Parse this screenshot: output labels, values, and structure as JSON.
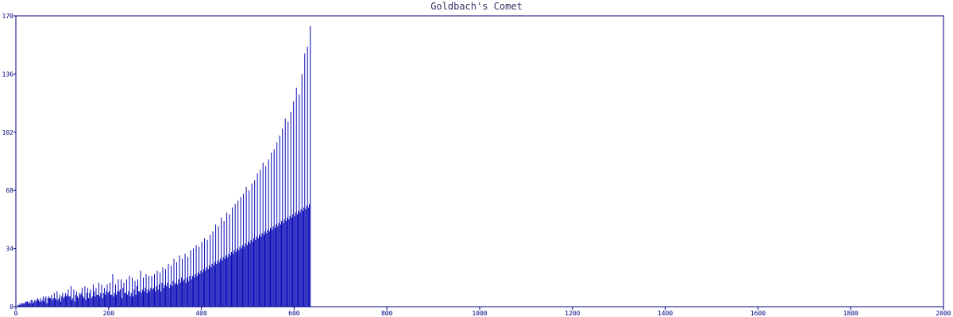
{
  "chart_data": {
    "type": "bar",
    "title": "Goldbach's Comet",
    "xlabel": "",
    "ylabel": "",
    "xlim": [
      0,
      2000
    ],
    "ylim": [
      0,
      170
    ],
    "x_ticks": [
      0,
      200,
      400,
      600,
      800,
      1000,
      1200,
      1400,
      1600,
      1800,
      2000
    ],
    "y_ticks": [
      0,
      34,
      68,
      102,
      136,
      170
    ],
    "grid": false,
    "legend": "none",
    "colors": {
      "bars": "#0000b4",
      "axis": "#000080",
      "title": "#333366",
      "background": "#ffffff"
    },
    "x_step": 2,
    "series": [
      {
        "values": [
          0,
          0,
          1,
          1,
          2,
          1,
          2,
          2,
          2,
          2,
          3,
          3,
          3,
          2,
          3,
          2,
          4,
          4,
          2,
          3,
          4,
          3,
          4,
          5,
          4,
          3,
          5,
          3,
          4,
          6,
          3,
          5,
          6,
          2,
          5,
          6,
          5,
          5,
          7,
          4,
          5,
          8,
          5,
          4,
          9,
          4,
          5,
          7,
          3,
          6,
          8,
          5,
          6,
          8,
          6,
          7,
          10,
          6,
          6,
          12,
          4,
          5,
          10,
          3,
          7,
          9,
          6,
          5,
          8,
          7,
          8,
          11,
          6,
          5,
          12,
          4,
          8,
          11,
          5,
          8,
          10,
          5,
          6,
          13,
          9,
          6,
          11,
          7,
          7,
          14,
          6,
          8,
          13,
          5,
          8,
          11,
          7,
          9,
          13,
          8,
          9,
          14,
          7,
          7,
          19,
          6,
          8,
          13,
          7,
          9,
          16,
          9,
          10,
          16,
          5,
          11,
          14,
          8,
          8,
          16,
          7,
          9,
          18,
          6,
          8,
          17,
          6,
          10,
          15,
          7,
          12,
          16,
          9,
          9,
          21,
          8,
          10,
          17,
          9,
          11,
          19,
          8,
          10,
          18,
          9,
          11,
          18,
          10,
          11,
          19,
          9,
          12,
          21,
          10,
          13,
          20,
          9,
          14,
          23,
          11,
          13,
          22,
          12,
          14,
          25,
          11,
          13,
          24,
          12,
          15,
          28,
          13,
          14,
          26,
          13,
          16,
          30,
          14,
          17,
          28,
          15,
          16,
          31,
          14,
          17,
          29,
          15,
          18,
          33,
          16,
          18,
          34,
          17,
          19,
          36,
          18,
          20,
          35,
          19,
          21,
          38,
          20,
          22,
          40,
          21,
          23,
          39,
          22,
          24,
          42,
          23,
          25,
          44,
          24,
          26,
          48,
          25,
          27,
          47,
          26,
          28,
          52,
          27,
          29,
          50,
          28,
          30,
          55,
          29,
          31,
          54,
          30,
          32,
          58,
          31,
          33,
          60,
          32,
          34,
          62,
          33,
          35,
          64,
          34,
          36,
          66,
          35,
          37,
          70,
          36,
          38,
          68,
          37,
          39,
          72,
          38,
          40,
          74,
          39,
          41,
          78,
          40,
          42,
          80,
          41,
          43,
          84,
          42,
          44,
          82,
          43,
          45,
          86,
          44,
          46,
          90,
          45,
          47,
          92,
          46,
          48,
          96,
          47,
          49,
          100,
          48,
          50,
          104,
          49,
          51,
          110,
          50,
          52,
          108,
          51,
          53,
          114,
          52,
          54,
          120,
          53,
          55,
          128,
          54,
          56,
          124,
          55,
          57,
          136,
          56,
          58,
          148,
          57,
          59,
          152,
          58,
          60,
          164
        ]
      }
    ]
  }
}
